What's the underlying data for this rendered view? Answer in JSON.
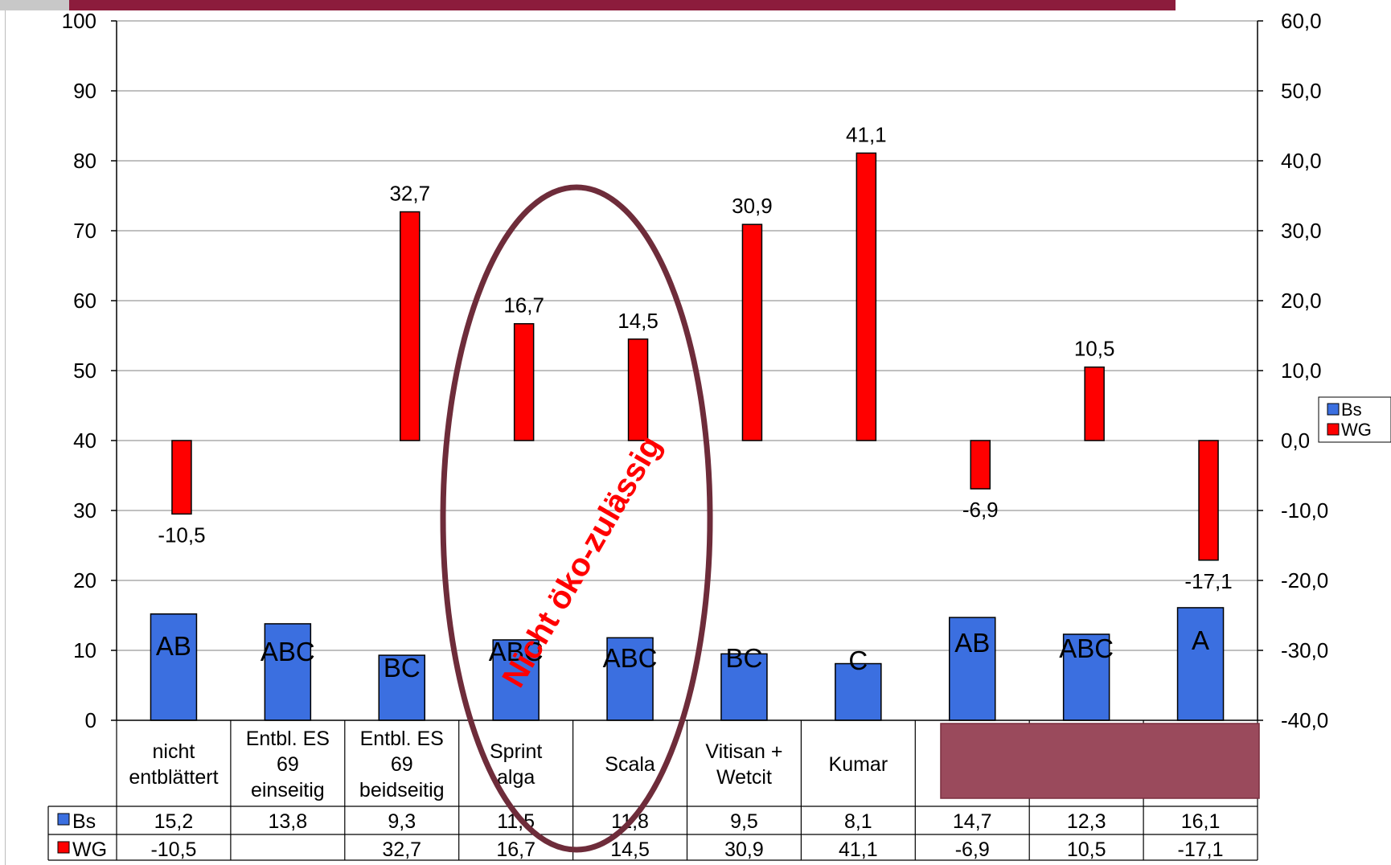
{
  "chart_data": {
    "type": "bar",
    "categories": [
      [
        "nicht",
        "entblättert"
      ],
      [
        "Entbl. ES",
        "69",
        "einseitig"
      ],
      [
        "Entbl. ES",
        "69",
        "beidseitig"
      ],
      [
        "Sprint",
        "alga"
      ],
      [
        "Scala"
      ],
      [
        "Vitisan +",
        "Wetcit"
      ],
      [
        "Kumar"
      ],
      [
        ""
      ],
      [
        ""
      ],
      [
        ""
      ]
    ],
    "series": [
      {
        "name": "Bs",
        "axis": "left",
        "color": "#3b6fe0",
        "values": [
          15.2,
          13.8,
          9.3,
          11.5,
          11.8,
          9.5,
          8.1,
          14.7,
          12.3,
          16.1
        ],
        "table_values": [
          "15,2",
          "13,8",
          "9,3",
          "11,5",
          "11,8",
          "9,5",
          "8,1",
          "14,7",
          "12,3",
          "16,1"
        ],
        "significance_letters": [
          "AB",
          "ABC",
          "BC",
          "ABC",
          "ABC",
          "BC",
          "C",
          "AB",
          "ABC",
          "A"
        ]
      },
      {
        "name": "WG",
        "axis": "right",
        "color": "#ff0000",
        "values": [
          -10.5,
          null,
          32.7,
          16.7,
          14.5,
          30.9,
          41.1,
          -6.9,
          10.5,
          -17.1
        ],
        "labels": [
          "-10,5",
          "",
          "32,7",
          "16,7",
          "14,5",
          "30,9",
          "41,1",
          "-6,9",
          "10,5",
          "-17,1"
        ]
      }
    ],
    "y_left": {
      "min": 0,
      "max": 100,
      "ticks": [
        "0",
        "10",
        "20",
        "30",
        "40",
        "50",
        "60",
        "70",
        "80",
        "90",
        "100"
      ]
    },
    "y_right": {
      "min": -40,
      "max": 60,
      "ticks": [
        "-40,0",
        "-30,0",
        "-20,0",
        "-10,0",
        "0,0",
        "10,0",
        "20,0",
        "30,0",
        "40,0",
        "50,0",
        "60,0"
      ]
    },
    "grid": true,
    "legend": {
      "placement": "right",
      "entries": [
        "Bs",
        "WG"
      ]
    },
    "annotation": {
      "text": "Nicht öko-zulässig",
      "color": "#ff0000",
      "ellipse_color": "#6e2c3a"
    }
  },
  "colors": {
    "header_band_red": "#8c1c3c",
    "header_band_gray": "#c8c8c8",
    "cover_box": "#9a4a5c"
  }
}
